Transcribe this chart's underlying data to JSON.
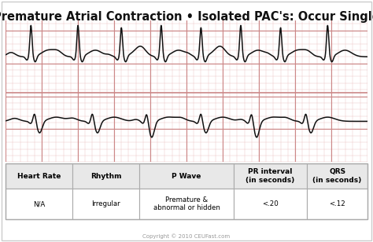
{
  "title": "Premature Atrial Contraction • Isolated PAC's: Occur Single",
  "title_fontsize": 10.5,
  "bg_color": "#f2d8d8",
  "ecg_grid_major_color": "#cc8888",
  "ecg_grid_minor_color": "#e8c0c0",
  "ecg_line_color": "#111111",
  "table_header_bg": "#e8e8e8",
  "table_border_color": "#aaaaaa",
  "copyright": "Copyright © 2010 CEUFast.com",
  "table_headers": [
    "Heart Rate",
    "Rhythm",
    "P Wave",
    "PR interval\n(in seconds)",
    "QRS\n(in seconds)"
  ],
  "table_values": [
    "N/A",
    "Irregular",
    "Premature &\nabnormal or hidden",
    "<.20",
    "<.12"
  ],
  "col_widths": [
    1.0,
    1.0,
    1.4,
    1.1,
    0.9
  ]
}
